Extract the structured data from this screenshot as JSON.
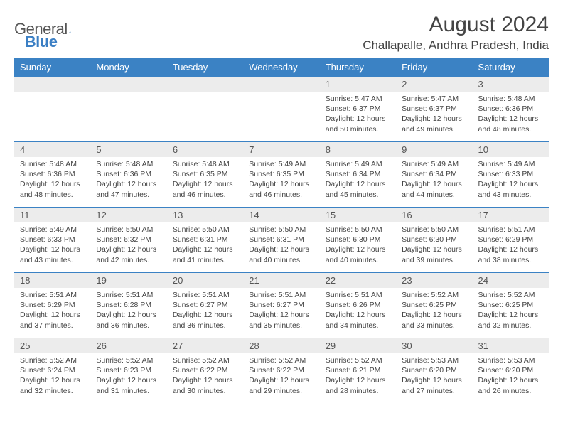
{
  "logo": {
    "textGray": "General",
    "textBlue": "Blue"
  },
  "header": {
    "monthTitle": "August 2024",
    "location": "Challapalle, Andhra Pradesh, India"
  },
  "dayHeaders": [
    "Sunday",
    "Monday",
    "Tuesday",
    "Wednesday",
    "Thursday",
    "Friday",
    "Saturday"
  ],
  "colors": {
    "headerBg": "#3b82c4",
    "dayNumBg": "#ececec",
    "rowBorder": "#3b82c4"
  },
  "weeks": [
    [
      {
        "n": "",
        "sr": "",
        "ss": "",
        "dl": ""
      },
      {
        "n": "",
        "sr": "",
        "ss": "",
        "dl": ""
      },
      {
        "n": "",
        "sr": "",
        "ss": "",
        "dl": ""
      },
      {
        "n": "",
        "sr": "",
        "ss": "",
        "dl": ""
      },
      {
        "n": "1",
        "sr": "Sunrise: 5:47 AM",
        "ss": "Sunset: 6:37 PM",
        "dl": "Daylight: 12 hours and 50 minutes."
      },
      {
        "n": "2",
        "sr": "Sunrise: 5:47 AM",
        "ss": "Sunset: 6:37 PM",
        "dl": "Daylight: 12 hours and 49 minutes."
      },
      {
        "n": "3",
        "sr": "Sunrise: 5:48 AM",
        "ss": "Sunset: 6:36 PM",
        "dl": "Daylight: 12 hours and 48 minutes."
      }
    ],
    [
      {
        "n": "4",
        "sr": "Sunrise: 5:48 AM",
        "ss": "Sunset: 6:36 PM",
        "dl": "Daylight: 12 hours and 48 minutes."
      },
      {
        "n": "5",
        "sr": "Sunrise: 5:48 AM",
        "ss": "Sunset: 6:36 PM",
        "dl": "Daylight: 12 hours and 47 minutes."
      },
      {
        "n": "6",
        "sr": "Sunrise: 5:48 AM",
        "ss": "Sunset: 6:35 PM",
        "dl": "Daylight: 12 hours and 46 minutes."
      },
      {
        "n": "7",
        "sr": "Sunrise: 5:49 AM",
        "ss": "Sunset: 6:35 PM",
        "dl": "Daylight: 12 hours and 46 minutes."
      },
      {
        "n": "8",
        "sr": "Sunrise: 5:49 AM",
        "ss": "Sunset: 6:34 PM",
        "dl": "Daylight: 12 hours and 45 minutes."
      },
      {
        "n": "9",
        "sr": "Sunrise: 5:49 AM",
        "ss": "Sunset: 6:34 PM",
        "dl": "Daylight: 12 hours and 44 minutes."
      },
      {
        "n": "10",
        "sr": "Sunrise: 5:49 AM",
        "ss": "Sunset: 6:33 PM",
        "dl": "Daylight: 12 hours and 43 minutes."
      }
    ],
    [
      {
        "n": "11",
        "sr": "Sunrise: 5:49 AM",
        "ss": "Sunset: 6:33 PM",
        "dl": "Daylight: 12 hours and 43 minutes."
      },
      {
        "n": "12",
        "sr": "Sunrise: 5:50 AM",
        "ss": "Sunset: 6:32 PM",
        "dl": "Daylight: 12 hours and 42 minutes."
      },
      {
        "n": "13",
        "sr": "Sunrise: 5:50 AM",
        "ss": "Sunset: 6:31 PM",
        "dl": "Daylight: 12 hours and 41 minutes."
      },
      {
        "n": "14",
        "sr": "Sunrise: 5:50 AM",
        "ss": "Sunset: 6:31 PM",
        "dl": "Daylight: 12 hours and 40 minutes."
      },
      {
        "n": "15",
        "sr": "Sunrise: 5:50 AM",
        "ss": "Sunset: 6:30 PM",
        "dl": "Daylight: 12 hours and 40 minutes."
      },
      {
        "n": "16",
        "sr": "Sunrise: 5:50 AM",
        "ss": "Sunset: 6:30 PM",
        "dl": "Daylight: 12 hours and 39 minutes."
      },
      {
        "n": "17",
        "sr": "Sunrise: 5:51 AM",
        "ss": "Sunset: 6:29 PM",
        "dl": "Daylight: 12 hours and 38 minutes."
      }
    ],
    [
      {
        "n": "18",
        "sr": "Sunrise: 5:51 AM",
        "ss": "Sunset: 6:29 PM",
        "dl": "Daylight: 12 hours and 37 minutes."
      },
      {
        "n": "19",
        "sr": "Sunrise: 5:51 AM",
        "ss": "Sunset: 6:28 PM",
        "dl": "Daylight: 12 hours and 36 minutes."
      },
      {
        "n": "20",
        "sr": "Sunrise: 5:51 AM",
        "ss": "Sunset: 6:27 PM",
        "dl": "Daylight: 12 hours and 36 minutes."
      },
      {
        "n": "21",
        "sr": "Sunrise: 5:51 AM",
        "ss": "Sunset: 6:27 PM",
        "dl": "Daylight: 12 hours and 35 minutes."
      },
      {
        "n": "22",
        "sr": "Sunrise: 5:51 AM",
        "ss": "Sunset: 6:26 PM",
        "dl": "Daylight: 12 hours and 34 minutes."
      },
      {
        "n": "23",
        "sr": "Sunrise: 5:52 AM",
        "ss": "Sunset: 6:25 PM",
        "dl": "Daylight: 12 hours and 33 minutes."
      },
      {
        "n": "24",
        "sr": "Sunrise: 5:52 AM",
        "ss": "Sunset: 6:25 PM",
        "dl": "Daylight: 12 hours and 32 minutes."
      }
    ],
    [
      {
        "n": "25",
        "sr": "Sunrise: 5:52 AM",
        "ss": "Sunset: 6:24 PM",
        "dl": "Daylight: 12 hours and 32 minutes."
      },
      {
        "n": "26",
        "sr": "Sunrise: 5:52 AM",
        "ss": "Sunset: 6:23 PM",
        "dl": "Daylight: 12 hours and 31 minutes."
      },
      {
        "n": "27",
        "sr": "Sunrise: 5:52 AM",
        "ss": "Sunset: 6:22 PM",
        "dl": "Daylight: 12 hours and 30 minutes."
      },
      {
        "n": "28",
        "sr": "Sunrise: 5:52 AM",
        "ss": "Sunset: 6:22 PM",
        "dl": "Daylight: 12 hours and 29 minutes."
      },
      {
        "n": "29",
        "sr": "Sunrise: 5:52 AM",
        "ss": "Sunset: 6:21 PM",
        "dl": "Daylight: 12 hours and 28 minutes."
      },
      {
        "n": "30",
        "sr": "Sunrise: 5:53 AM",
        "ss": "Sunset: 6:20 PM",
        "dl": "Daylight: 12 hours and 27 minutes."
      },
      {
        "n": "31",
        "sr": "Sunrise: 5:53 AM",
        "ss": "Sunset: 6:20 PM",
        "dl": "Daylight: 12 hours and 26 minutes."
      }
    ]
  ]
}
